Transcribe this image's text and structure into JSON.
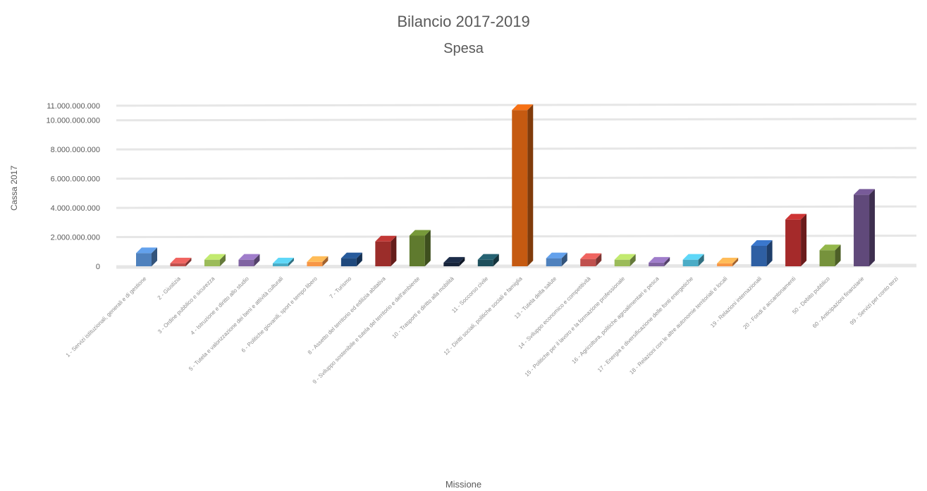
{
  "chart_data": {
    "type": "bar",
    "title": "Bilancio 2017-2019",
    "subtitle": "Spesa",
    "xlabel": "Missione",
    "ylabel": "Cassa 2017",
    "ylim": [
      0,
      11000000000
    ],
    "yticks": [
      "0",
      "2.000.000.000",
      "4.000.000.000",
      "6.000.000.000",
      "8.000.000.000",
      "10.000.000.000",
      "11.000.000.000"
    ],
    "ytick_values": [
      0,
      2000000000,
      4000000000,
      6000000000,
      8000000000,
      10000000000,
      11000000000
    ],
    "grid": true,
    "style": "3d-column",
    "categories": [
      "1 - Servizi istituzionali, generali e di gestione",
      "2 - Giustizia",
      "3 - Ordine pubblico e sicurezza",
      "4 - Istruzione e diritto allo studio",
      "5 - Tutela e valorizzazione dei beni e attività culturali",
      "6 - Politiche giovanili, sport e tempo libero",
      "7 - Turismo",
      "8 - Assetto del territorio ed edilizia abitativa",
      "9 - Sviluppo sostenibile e tutela del territorio e dell'ambiente",
      "10 - Trasporti e diritto alla mobilità",
      "11 - Soccorso civile",
      "12 - Diritti sociali, politiche sociali e famiglia",
      "13 - Tutela della salute",
      "14 - Sviluppo economico e competitività",
      "15 - Politiche per il lavoro e la formazione professionale",
      "16 - Agricoltura, politiche agroalimentari e pesca",
      "17 - Energia e diversificazione delle fonti energetiche",
      "18 - Relazioni con le altre autonomie territoriali e locali",
      "19 - Relazioni internazionali",
      "20 - Fondi e accantonamenti",
      "50 - Debito pubblico",
      "60 - Anticipazioni finanziarie",
      "99 - Servizi per conto terzi"
    ],
    "values": [
      900000000,
      200000000,
      450000000,
      450000000,
      200000000,
      300000000,
      550000000,
      1700000000,
      2100000000,
      250000000,
      450000000,
      10700000000,
      550000000,
      500000000,
      450000000,
      250000000,
      450000000,
      200000000,
      1400000000,
      3200000000,
      1100000000,
      4900000000,
      0
    ],
    "colors": [
      "#4f81bd",
      "#c0504d",
      "#9bbb59",
      "#8064a2",
      "#4bacc6",
      "#f79646",
      "#1f497d",
      "#9b2d2a",
      "#5f7a2e",
      "#17243a",
      "#1e4f5c",
      "#c55a11",
      "#4f81bd",
      "#c0504d",
      "#9bbb59",
      "#8064a2",
      "#4bacc6",
      "#f79646",
      "#2e5fa3",
      "#a52a2a",
      "#76923c",
      "#60497a",
      "#4bacc6"
    ]
  }
}
